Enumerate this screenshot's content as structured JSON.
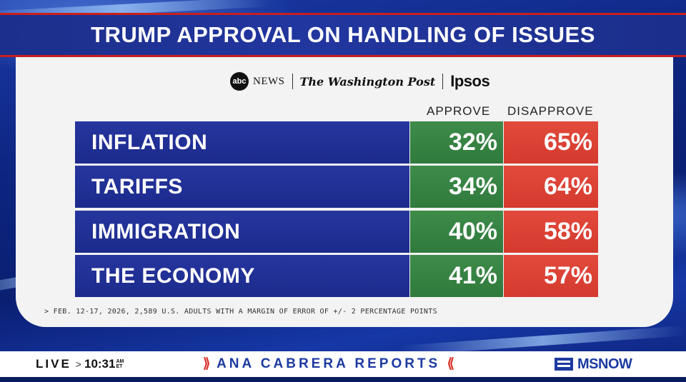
{
  "title": "TRUMP APPROVAL ON HANDLING OF ISSUES",
  "logos": {
    "abc_ball": "abc",
    "abc_news": "NEWS",
    "wapo": "The Washington Post",
    "ipsos": "Ipsos"
  },
  "columns": {
    "approve": "APPROVE",
    "disapprove": "DISAPPROVE"
  },
  "rows": [
    {
      "issue": "INFLATION",
      "approve": "32%",
      "disapprove": "65%"
    },
    {
      "issue": "TARIFFS",
      "approve": "34%",
      "disapprove": "64%"
    },
    {
      "issue": "IMMIGRATION",
      "approve": "40%",
      "disapprove": "58%"
    },
    {
      "issue": "THE ECONOMY",
      "approve": "41%",
      "disapprove": "57%"
    }
  ],
  "footnote": "> FEB. 12-17, 2026, 2,589 U.S. ADULTS WITH A MARGIN OF ERROR OF +/- 2 PERCENTAGE POINTS",
  "ticker": {
    "live": "LIVE",
    "chevron": ">",
    "time": "10:31",
    "am": "AM",
    "et": "ET",
    "show_open": "⟫",
    "show": "ANA CABRERA REPORTS",
    "show_close": "⟪",
    "brand": "MSNOW"
  },
  "colors": {
    "approve": "#2f7a3c",
    "disapprove": "#d43a2e",
    "label_bg": "#1c2a8c",
    "accent_red": "#c6201f"
  }
}
